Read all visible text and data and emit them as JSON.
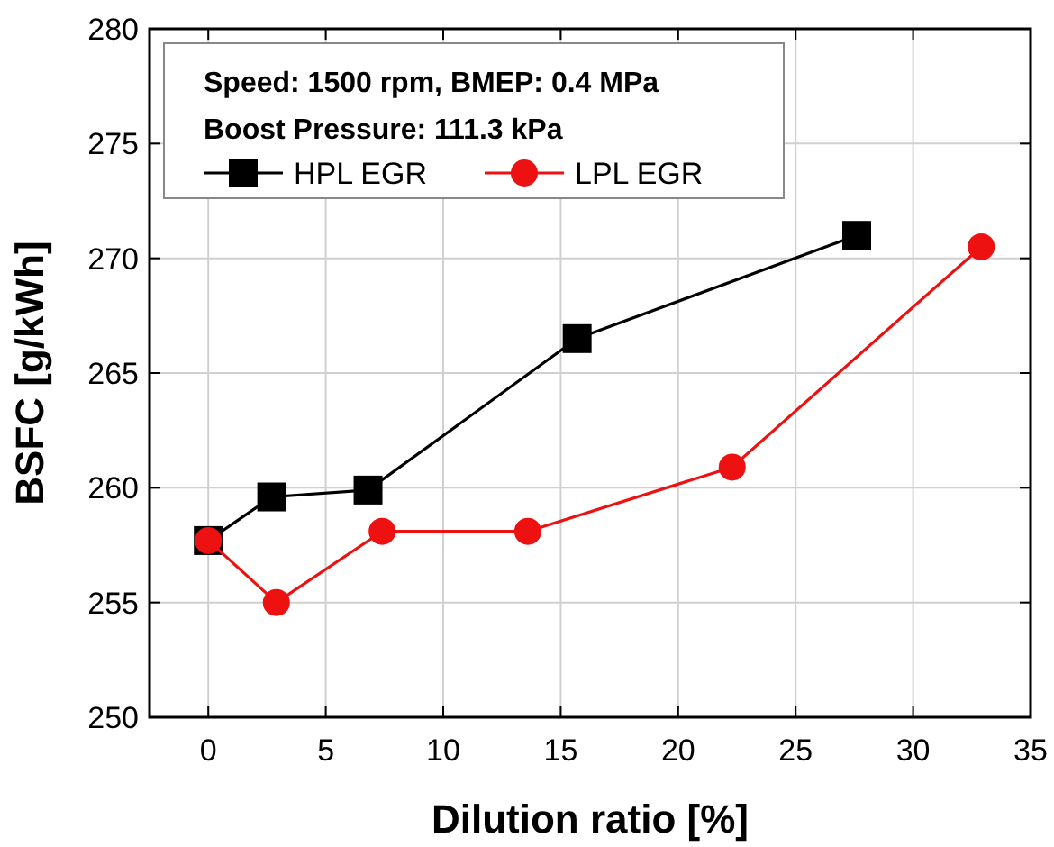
{
  "chart_data": {
    "type": "line",
    "xlabel": "Dilution ratio [%]",
    "ylabel": "BSFC [g/kWh]",
    "xlim": [
      -2.5,
      35
    ],
    "xticks": [
      0,
      5,
      10,
      15,
      20,
      25,
      30,
      35
    ],
    "ylim": [
      250,
      280
    ],
    "yticks": [
      250,
      255,
      260,
      265,
      270,
      275,
      280
    ],
    "grid": true,
    "legend": "top left",
    "line_style": "solid",
    "annotations": [
      "Speed: 1500 rpm, BMEP: 0.4 MPa",
      "Boost Pressure: 111.3 kPa"
    ],
    "series": [
      {
        "name": "HPL EGR",
        "color": "#000000",
        "marker": "square",
        "x": [
          0,
          2.7,
          6.8,
          15.7,
          27.6
        ],
        "values": [
          257.7,
          259.6,
          259.9,
          266.5,
          271
        ]
      },
      {
        "name": "LPL EGR",
        "color": "#ee1111",
        "marker": "circle",
        "x": [
          0,
          2.9,
          7.4,
          13.6,
          22.3,
          32.9
        ],
        "values": [
          257.7,
          255,
          258.1,
          258.1,
          260.9,
          270.5
        ]
      }
    ]
  }
}
